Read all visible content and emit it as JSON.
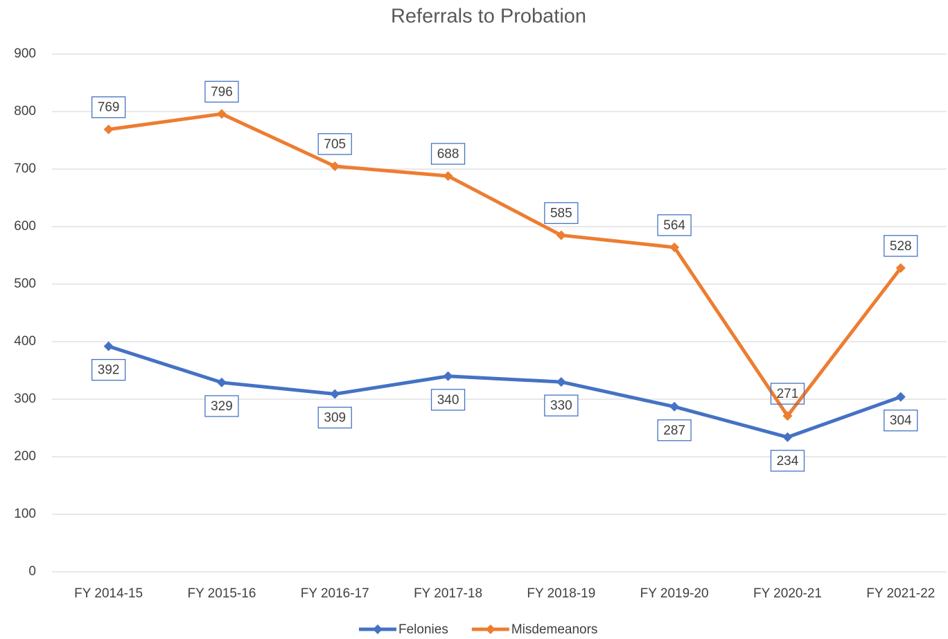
{
  "chart_data": {
    "type": "line",
    "title": "Referrals to Probation",
    "categories": [
      "FY 2014-15",
      "FY 2015-16",
      "FY 2016-17",
      "FY 2017-18",
      "FY 2018-19",
      "FY 2019-20",
      "FY 2020-21",
      "FY 2021-22"
    ],
    "series": [
      {
        "name": "Felonies",
        "color": "#4472c4",
        "values": [
          392,
          329,
          309,
          340,
          330,
          287,
          234,
          304
        ]
      },
      {
        "name": "Misdemeanors",
        "color": "#ed7d31",
        "values": [
          769,
          796,
          705,
          688,
          585,
          564,
          271,
          528
        ]
      }
    ],
    "ylim": [
      0,
      900
    ],
    "yticks": [
      0,
      100,
      200,
      300,
      400,
      500,
      600,
      700,
      800,
      900
    ],
    "grid": true,
    "legend": "bottom"
  }
}
